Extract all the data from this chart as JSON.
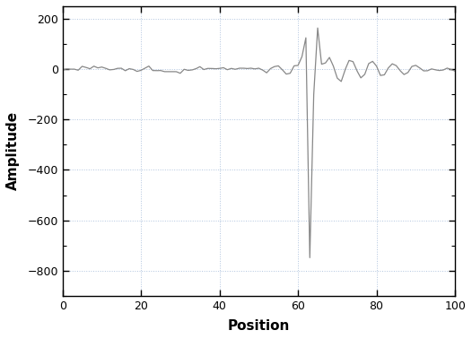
{
  "title": "",
  "xlabel": "Position",
  "ylabel": "Amplitude",
  "xlim": [
    0,
    100
  ],
  "ylim": [
    -900,
    250
  ],
  "yticks": [
    -800,
    -600,
    -400,
    -200,
    0,
    200
  ],
  "xticks": [
    0,
    20,
    40,
    60,
    80,
    100
  ],
  "line_color": "#888888",
  "line_width": 0.9,
  "grid_color": "#b0c4de",
  "grid_linestyle": ":",
  "grid_linewidth": 0.7,
  "background_color": "#ffffff",
  "signal": {
    "noise_level": 7,
    "pre_osc_start": 48,
    "pre_osc_end": 63,
    "pre_osc_max_amp": 55,
    "spike_neg_x": 63,
    "spike_neg_y": -750,
    "spike_pos_x": 65,
    "spike_pos_y": 165,
    "post_osc_start": 67,
    "post_osc_max_amp": 50,
    "post_osc_end": 95
  }
}
